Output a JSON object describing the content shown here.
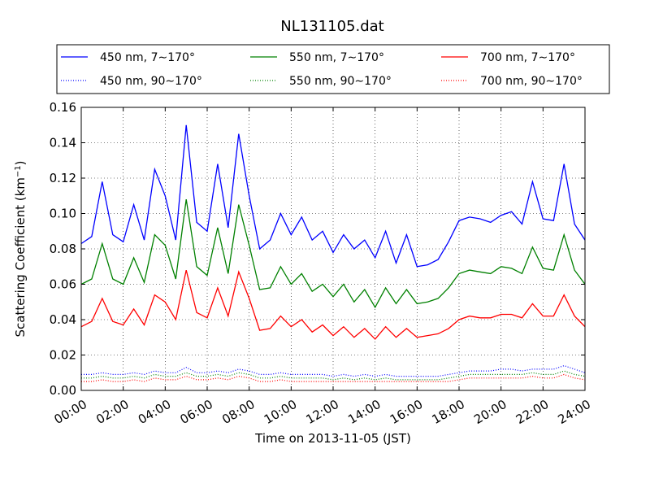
{
  "chart_data": {
    "type": "line",
    "title": "NL131105.dat",
    "xlabel": "Time on 2013-11-05 (JST)",
    "ylabel": "Scattering Coefficient (km",
    "ylabel_unit_sup": "−1",
    "ylabel_close": ")",
    "xlim": [
      0,
      24
    ],
    "ylim": [
      0,
      0.16
    ],
    "grid": true,
    "legend_position": "top, outside plot, 3 columns",
    "xticks": [
      0,
      2,
      4,
      6,
      8,
      10,
      12,
      14,
      16,
      18,
      20,
      22,
      24
    ],
    "xtick_labels": [
      "00:00",
      "02:00",
      "04:00",
      "06:00",
      "08:00",
      "10:00",
      "12:00",
      "14:00",
      "16:00",
      "18:00",
      "20:00",
      "22:00",
      "24:00"
    ],
    "yticks": [
      0,
      0.02,
      0.04,
      0.06,
      0.08,
      0.1,
      0.12,
      0.14,
      0.16
    ],
    "ytick_labels": [
      "0.00",
      "0.02",
      "0.04",
      "0.06",
      "0.08",
      "0.10",
      "0.12",
      "0.14",
      "0.16"
    ],
    "x": [
      0,
      0.5,
      1.0,
      1.5,
      2.0,
      2.5,
      3.0,
      3.5,
      4.0,
      4.5,
      5.0,
      5.5,
      6.0,
      6.5,
      7.0,
      7.5,
      8.0,
      8.5,
      9.0,
      9.5,
      10.0,
      10.5,
      11.0,
      11.5,
      12.0,
      12.5,
      13.0,
      13.5,
      14.0,
      14.5,
      15.0,
      15.5,
      16.0,
      16.5,
      17.0,
      17.5,
      18.0,
      18.5,
      19.0,
      19.5,
      20.0,
      20.5,
      21.0,
      21.5,
      22.0,
      22.5,
      23.0,
      23.5,
      24.0
    ],
    "series": [
      {
        "name": "450 nm, 7∼170°",
        "color": "#0000ff",
        "style": "solid",
        "values": [
          0.083,
          0.087,
          0.118,
          0.088,
          0.084,
          0.105,
          0.085,
          0.125,
          0.11,
          0.085,
          0.15,
          0.095,
          0.09,
          0.128,
          0.092,
          0.145,
          0.11,
          0.08,
          0.085,
          0.1,
          0.088,
          0.098,
          0.085,
          0.09,
          0.078,
          0.088,
          0.08,
          0.085,
          0.075,
          0.09,
          0.072,
          0.088,
          0.07,
          0.071,
          0.074,
          0.084,
          0.096,
          0.098,
          0.097,
          0.095,
          0.099,
          0.101,
          0.094,
          0.118,
          0.097,
          0.096,
          0.128,
          0.094,
          0.085
        ]
      },
      {
        "name": "550 nm, 7∼170°",
        "color": "#008000",
        "style": "solid",
        "values": [
          0.06,
          0.063,
          0.083,
          0.063,
          0.06,
          0.075,
          0.061,
          0.088,
          0.082,
          0.063,
          0.108,
          0.07,
          0.065,
          0.092,
          0.066,
          0.105,
          0.082,
          0.057,
          0.058,
          0.07,
          0.06,
          0.066,
          0.056,
          0.06,
          0.053,
          0.06,
          0.05,
          0.057,
          0.047,
          0.058,
          0.049,
          0.057,
          0.049,
          0.05,
          0.052,
          0.058,
          0.066,
          0.068,
          0.067,
          0.066,
          0.07,
          0.069,
          0.066,
          0.081,
          0.069,
          0.068,
          0.088,
          0.068,
          0.06
        ]
      },
      {
        "name": "700 nm, 7∼170°",
        "color": "#ff0000",
        "style": "solid",
        "values": [
          0.036,
          0.039,
          0.052,
          0.039,
          0.037,
          0.046,
          0.037,
          0.054,
          0.05,
          0.04,
          0.068,
          0.044,
          0.041,
          0.058,
          0.042,
          0.067,
          0.052,
          0.034,
          0.035,
          0.042,
          0.036,
          0.04,
          0.033,
          0.037,
          0.031,
          0.036,
          0.03,
          0.035,
          0.029,
          0.036,
          0.03,
          0.035,
          0.03,
          0.031,
          0.032,
          0.035,
          0.04,
          0.042,
          0.041,
          0.041,
          0.043,
          0.043,
          0.041,
          0.049,
          0.042,
          0.042,
          0.054,
          0.042,
          0.036
        ]
      },
      {
        "name": "450 nm, 90∼170°",
        "color": "#0000ff",
        "style": "dotted",
        "values": [
          0.009,
          0.009,
          0.01,
          0.009,
          0.009,
          0.01,
          0.009,
          0.011,
          0.01,
          0.01,
          0.013,
          0.01,
          0.01,
          0.011,
          0.01,
          0.012,
          0.011,
          0.009,
          0.009,
          0.01,
          0.009,
          0.009,
          0.009,
          0.009,
          0.008,
          0.009,
          0.008,
          0.009,
          0.008,
          0.009,
          0.008,
          0.008,
          0.008,
          0.008,
          0.008,
          0.009,
          0.01,
          0.011,
          0.011,
          0.011,
          0.012,
          0.012,
          0.011,
          0.012,
          0.012,
          0.012,
          0.014,
          0.012,
          0.01
        ]
      },
      {
        "name": "550 nm, 90∼170°",
        "color": "#008000",
        "style": "dotted",
        "values": [
          0.007,
          0.007,
          0.008,
          0.007,
          0.007,
          0.008,
          0.007,
          0.009,
          0.008,
          0.008,
          0.01,
          0.008,
          0.008,
          0.009,
          0.008,
          0.01,
          0.009,
          0.007,
          0.007,
          0.008,
          0.007,
          0.007,
          0.007,
          0.007,
          0.006,
          0.007,
          0.006,
          0.007,
          0.006,
          0.007,
          0.006,
          0.006,
          0.006,
          0.006,
          0.006,
          0.007,
          0.008,
          0.009,
          0.009,
          0.009,
          0.009,
          0.009,
          0.009,
          0.01,
          0.009,
          0.009,
          0.011,
          0.009,
          0.008
        ]
      },
      {
        "name": "700 nm, 90∼170°",
        "color": "#ff0000",
        "style": "dotted",
        "values": [
          0.005,
          0.005,
          0.006,
          0.005,
          0.005,
          0.006,
          0.005,
          0.007,
          0.006,
          0.006,
          0.008,
          0.006,
          0.006,
          0.007,
          0.006,
          0.008,
          0.007,
          0.005,
          0.005,
          0.006,
          0.005,
          0.005,
          0.005,
          0.005,
          0.005,
          0.005,
          0.005,
          0.005,
          0.005,
          0.005,
          0.005,
          0.005,
          0.005,
          0.005,
          0.005,
          0.005,
          0.006,
          0.007,
          0.007,
          0.007,
          0.007,
          0.007,
          0.007,
          0.008,
          0.007,
          0.007,
          0.009,
          0.007,
          0.006
        ]
      }
    ],
    "legend_order": [
      0,
      1,
      2,
      3,
      4,
      5
    ]
  }
}
